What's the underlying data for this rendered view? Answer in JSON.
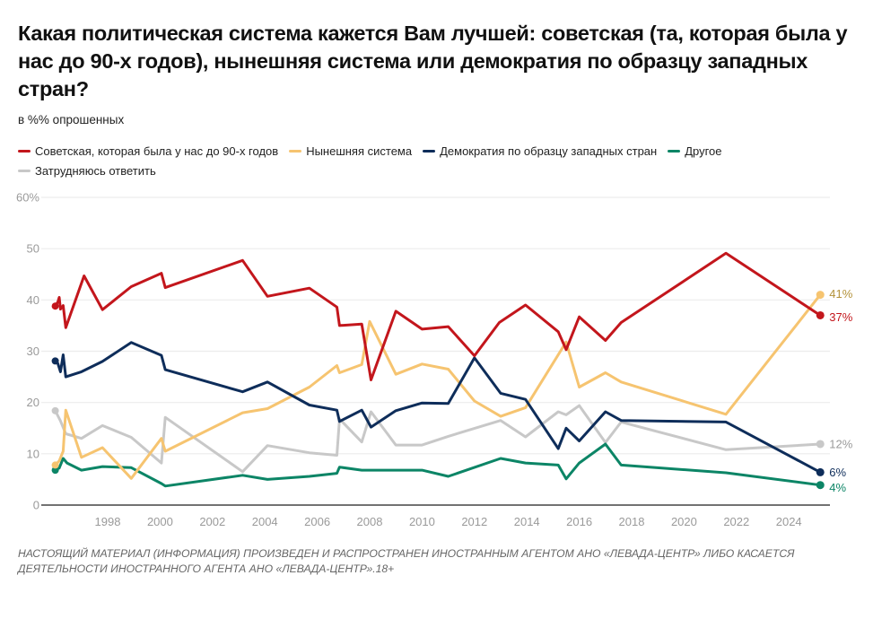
{
  "chart_data": {
    "type": "line",
    "title": "Какая политическая система кажется Вам лучшей: советская (та, которая была у нас до 90-х годов), нынешняя система или демократия по образцу западных стран?",
    "subtitle": "в %% опрошенных",
    "xlabel": "",
    "ylabel": "",
    "xlim": [
      1996,
      2025.5
    ],
    "ylim": [
      0,
      60
    ],
    "grid": true,
    "legend_position": "top-left",
    "y_ticks": [
      {
        "value": 0,
        "label": "0"
      },
      {
        "value": 10,
        "label": "10"
      },
      {
        "value": 20,
        "label": "20"
      },
      {
        "value": 30,
        "label": "30"
      },
      {
        "value": 40,
        "label": "40"
      },
      {
        "value": 50,
        "label": "50"
      },
      {
        "value": 60,
        "label": "60%"
      }
    ],
    "x_ticks": [
      {
        "value": 1998,
        "label": "1998"
      },
      {
        "value": 2000,
        "label": "2000"
      },
      {
        "value": 2002,
        "label": "2002"
      },
      {
        "value": 2004,
        "label": "2004"
      },
      {
        "value": 2006,
        "label": "2006"
      },
      {
        "value": 2008,
        "label": "2008"
      },
      {
        "value": 2010,
        "label": "2010"
      },
      {
        "value": 2012,
        "label": "2012"
      },
      {
        "value": 2014,
        "label": "2014"
      },
      {
        "value": 2016,
        "label": "2016"
      },
      {
        "value": 2018,
        "label": "2018"
      },
      {
        "value": 2020,
        "label": "2020"
      },
      {
        "value": 2022,
        "label": "2022"
      },
      {
        "value": 2024,
        "label": "2024"
      }
    ],
    "series": [
      {
        "name": "Советская, которая была у нас до 90-х годов",
        "color": "#c3161c",
        "label_color": "#c3161c",
        "end_label": "37%",
        "points": [
          [
            1996.0,
            38.8
          ],
          [
            1996.1,
            39.6
          ],
          [
            1996.15,
            40.5
          ],
          [
            1996.2,
            38.2
          ],
          [
            1996.3,
            38.9
          ],
          [
            1996.4,
            34.6
          ],
          [
            1997.1,
            44.7
          ],
          [
            1997.8,
            38.1
          ],
          [
            1998.9,
            42.6
          ],
          [
            2000.05,
            45.2
          ],
          [
            2000.2,
            42.4
          ],
          [
            2003.15,
            47.7
          ],
          [
            2004.1,
            40.7
          ],
          [
            2005.7,
            42.3
          ],
          [
            2006.75,
            38.6
          ],
          [
            2006.85,
            35.0
          ],
          [
            2007.7,
            35.3
          ],
          [
            2008.05,
            24.4
          ],
          [
            2009.0,
            37.8
          ],
          [
            2010.0,
            34.3
          ],
          [
            2011.0,
            34.8
          ],
          [
            2012.0,
            29.1
          ],
          [
            2012.95,
            35.6
          ],
          [
            2013.95,
            39.0
          ],
          [
            2015.2,
            33.8
          ],
          [
            2015.5,
            30.3
          ],
          [
            2016.0,
            36.7
          ],
          [
            2017.0,
            32.1
          ],
          [
            2017.6,
            35.6
          ],
          [
            2021.6,
            49.1
          ],
          [
            2025.2,
            37.0
          ]
        ]
      },
      {
        "name": "Нынешняя система",
        "color": "#f6c470",
        "label_color": "#b3923a",
        "end_label": "41%",
        "points": [
          [
            1996.0,
            7.8
          ],
          [
            1996.15,
            8.6
          ],
          [
            1996.3,
            10.5
          ],
          [
            1996.4,
            18.5
          ],
          [
            1997.0,
            9.3
          ],
          [
            1997.8,
            11.2
          ],
          [
            1998.9,
            5.2
          ],
          [
            2000.05,
            13.0
          ],
          [
            2000.2,
            10.5
          ],
          [
            2003.15,
            18.0
          ],
          [
            2004.1,
            18.8
          ],
          [
            2005.7,
            23.0
          ],
          [
            2006.75,
            27.2
          ],
          [
            2006.85,
            25.8
          ],
          [
            2007.7,
            27.4
          ],
          [
            2008.0,
            35.8
          ],
          [
            2009.0,
            25.5
          ],
          [
            2010.0,
            27.5
          ],
          [
            2011.0,
            26.5
          ],
          [
            2012.0,
            20.3
          ],
          [
            2013.0,
            17.3
          ],
          [
            2013.95,
            19.0
          ],
          [
            2015.5,
            31.8
          ],
          [
            2016.0,
            23.0
          ],
          [
            2017.0,
            25.8
          ],
          [
            2017.6,
            24.0
          ],
          [
            2021.6,
            17.7
          ],
          [
            2025.2,
            41.0
          ]
        ]
      },
      {
        "name": "Демократия по образцу западных стран",
        "color": "#0e2d5a",
        "label_color": "#0e2d5a",
        "end_label": "6%",
        "points": [
          [
            1996.0,
            28.1
          ],
          [
            1996.1,
            27.6
          ],
          [
            1996.2,
            26.0
          ],
          [
            1996.3,
            29.3
          ],
          [
            1996.4,
            25.0
          ],
          [
            1997.0,
            26.0
          ],
          [
            1997.8,
            28.0
          ],
          [
            1998.9,
            31.7
          ],
          [
            2000.05,
            29.2
          ],
          [
            2000.2,
            26.4
          ],
          [
            2003.15,
            22.1
          ],
          [
            2004.1,
            24.0
          ],
          [
            2005.7,
            19.5
          ],
          [
            2006.75,
            18.5
          ],
          [
            2006.85,
            16.3
          ],
          [
            2007.7,
            18.5
          ],
          [
            2008.05,
            15.2
          ],
          [
            2009.0,
            18.4
          ],
          [
            2010.0,
            19.9
          ],
          [
            2011.0,
            19.8
          ],
          [
            2012.0,
            28.7
          ],
          [
            2013.0,
            21.8
          ],
          [
            2013.95,
            20.6
          ],
          [
            2015.2,
            11.0
          ],
          [
            2015.5,
            15.0
          ],
          [
            2016.0,
            12.5
          ],
          [
            2017.0,
            18.2
          ],
          [
            2017.6,
            16.5
          ],
          [
            2021.6,
            16.2
          ],
          [
            2025.2,
            6.4
          ]
        ]
      },
      {
        "name": "Другое",
        "color": "#0c8566",
        "label_color": "#0c8566",
        "end_label": "4%",
        "points": [
          [
            1996.0,
            6.8
          ],
          [
            1996.15,
            7.2
          ],
          [
            1996.3,
            9.1
          ],
          [
            1996.45,
            8.2
          ],
          [
            1997.0,
            6.8
          ],
          [
            1997.8,
            7.5
          ],
          [
            1998.9,
            7.3
          ],
          [
            2000.05,
            4.2
          ],
          [
            2000.2,
            3.7
          ],
          [
            2003.15,
            5.8
          ],
          [
            2004.1,
            5.0
          ],
          [
            2005.7,
            5.6
          ],
          [
            2006.75,
            6.2
          ],
          [
            2006.85,
            7.4
          ],
          [
            2007.7,
            6.8
          ],
          [
            2009.0,
            6.8
          ],
          [
            2010.0,
            6.8
          ],
          [
            2011.0,
            5.6
          ],
          [
            2013.0,
            9.1
          ],
          [
            2013.95,
            8.2
          ],
          [
            2015.2,
            7.8
          ],
          [
            2015.5,
            5.1
          ],
          [
            2016.0,
            8.2
          ],
          [
            2017.0,
            11.9
          ],
          [
            2017.6,
            7.8
          ],
          [
            2021.6,
            6.3
          ],
          [
            2025.2,
            3.9
          ]
        ]
      },
      {
        "name": "Затрудняюсь ответить",
        "color": "#c8c8c8",
        "label_color": "#9a9a9a",
        "end_label": "12%",
        "points": [
          [
            1996.0,
            18.4
          ],
          [
            1996.1,
            17.4
          ],
          [
            1996.2,
            16.4
          ],
          [
            1996.4,
            13.9
          ],
          [
            1997.0,
            13.0
          ],
          [
            1997.8,
            15.5
          ],
          [
            1998.9,
            13.2
          ],
          [
            2000.05,
            8.2
          ],
          [
            2000.2,
            17.1
          ],
          [
            2003.15,
            6.5
          ],
          [
            2004.1,
            11.6
          ],
          [
            2005.7,
            10.2
          ],
          [
            2006.75,
            9.7
          ],
          [
            2006.85,
            16.8
          ],
          [
            2007.7,
            12.3
          ],
          [
            2008.05,
            18.2
          ],
          [
            2009.0,
            11.7
          ],
          [
            2010.0,
            11.7
          ],
          [
            2011.0,
            13.4
          ],
          [
            2013.0,
            16.5
          ],
          [
            2013.95,
            13.3
          ],
          [
            2015.2,
            18.2
          ],
          [
            2015.5,
            17.6
          ],
          [
            2016.0,
            19.4
          ],
          [
            2017.0,
            12.2
          ],
          [
            2017.6,
            16.2
          ],
          [
            2021.6,
            10.8
          ],
          [
            2025.2,
            11.9
          ]
        ]
      }
    ]
  },
  "header": {
    "title": "Какая политическая система кажется Вам лучшей: советская (та, которая была у нас до 90-х годов), нынешняя система или демократия по образцу западных стран?",
    "subtitle": "в %% опрошенных"
  },
  "legend": {
    "items": [
      {
        "label": "Советская, которая была у нас до 90-х годов",
        "color": "#c3161c"
      },
      {
        "label": "Нынешняя система",
        "color": "#f6c470"
      },
      {
        "label": "Демократия по образцу западных стран",
        "color": "#0e2d5a"
      },
      {
        "label": "Другое",
        "color": "#0c8566"
      },
      {
        "label": "Затрудняюсь ответить",
        "color": "#c8c8c8"
      }
    ]
  },
  "footer": {
    "disclaimer": "НАСТОЯЩИЙ МАТЕРИАЛ (ИНФОРМАЦИЯ) ПРОИЗВЕДЕН И РАСПРОСТРАНЕН ИНОСТРАННЫМ АГЕНТОМ АНО «ЛЕВАДА-ЦЕНТР» ЛИБО КАСАЕТСЯ ДЕЯТЕЛЬНОСТИ ИНОСТРАННОГО АГЕНТА АНО «ЛЕВАДА-ЦЕНТР».18+"
  }
}
